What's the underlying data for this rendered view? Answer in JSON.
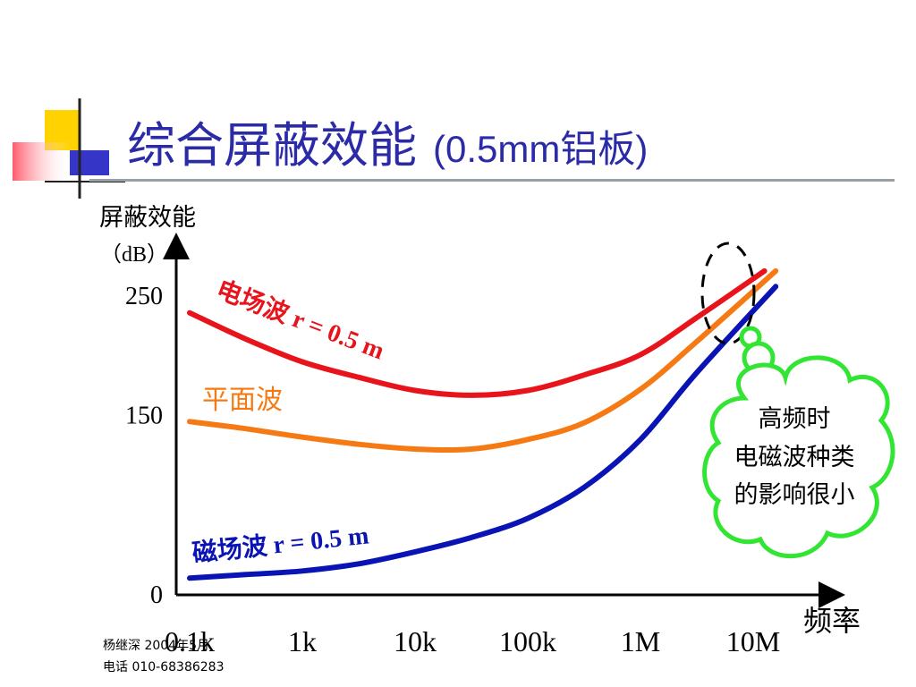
{
  "slide": {
    "title": "综合屏蔽效能",
    "title_suffix": "(0.5mm铝板)"
  },
  "chart_data": {
    "type": "line",
    "ylabel_line1": "屏蔽效能",
    "ylabel_line2": "（dB）",
    "xlabel": "频率",
    "x_categories": [
      "0.1k",
      "1k",
      "10k",
      "100k",
      "1M",
      "10M"
    ],
    "y_ticks": [
      0,
      150,
      250
    ],
    "ylim": [
      0,
      280
    ],
    "grid": false,
    "series": [
      {
        "name": "电场波 r = 0.5 m",
        "color": "#e8141c",
        "points": [
          [
            0,
            236
          ],
          [
            0.5,
            214
          ],
          [
            1,
            195
          ],
          [
            1.5,
            182
          ],
          [
            2,
            171
          ],
          [
            2.5,
            167
          ],
          [
            3,
            171
          ],
          [
            3.5,
            184
          ],
          [
            4,
            201
          ],
          [
            4.5,
            232
          ],
          [
            5.1,
            271
          ]
        ]
      },
      {
        "name": "平面波",
        "color": "#f57a14",
        "points": [
          [
            0,
            145
          ],
          [
            0.5,
            139
          ],
          [
            1,
            132
          ],
          [
            1.5,
            126
          ],
          [
            2,
            122
          ],
          [
            2.5,
            122
          ],
          [
            3,
            130
          ],
          [
            3.5,
            144
          ],
          [
            4,
            172
          ],
          [
            4.5,
            212
          ],
          [
            5.2,
            271
          ]
        ]
      },
      {
        "name": "磁场波 r = 0.5 m",
        "color": "#0a14b4",
        "points": [
          [
            0,
            14
          ],
          [
            0.5,
            17
          ],
          [
            1,
            20
          ],
          [
            1.5,
            26
          ],
          [
            2,
            36
          ],
          [
            2.5,
            48
          ],
          [
            3,
            64
          ],
          [
            3.5,
            90
          ],
          [
            4,
            130
          ],
          [
            4.5,
            186
          ],
          [
            5.2,
            258
          ]
        ]
      }
    ],
    "annotation": {
      "line1": "高频时",
      "line2": "电磁波种类",
      "line3": "的影响很小",
      "color": "#33e533"
    }
  },
  "footer": {
    "author_date": "杨继深  2004年5月",
    "phone": "电话 010-68386283"
  }
}
